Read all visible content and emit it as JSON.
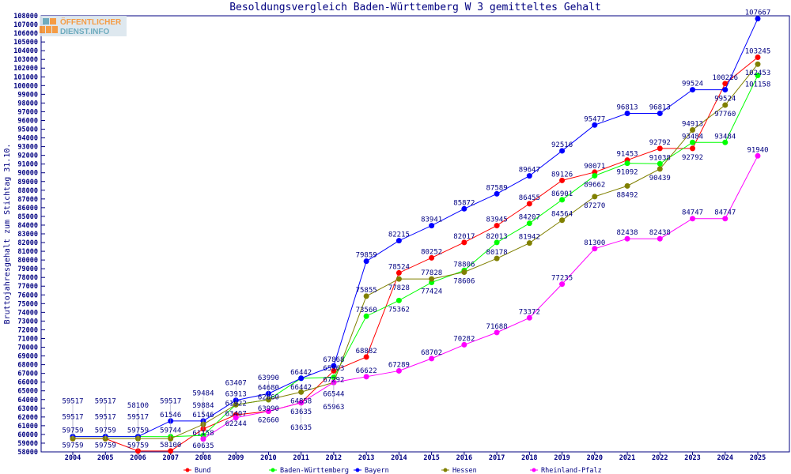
{
  "logo": {
    "line1": "ÖFFENTLICHER",
    "line2": "DIENST.INFO"
  },
  "chart_data": {
    "type": "line",
    "title": "Besoldungsvergleich Baden-Württemberg W 3 gemitteltes Gehalt",
    "xlabel": "",
    "ylabel": "Bruttojahresgehalt zum Stichtag 31.10.",
    "ylim": [
      58000,
      108000
    ],
    "ytick_step": 1000,
    "grid": false,
    "legend_position": "bottom",
    "categories": [
      "2004",
      "2005",
      "2006",
      "2007",
      "2008",
      "2009",
      "2010",
      "2011",
      "2012",
      "2013",
      "2014",
      "2015",
      "2016",
      "2017",
      "2018",
      "2019",
      "2020",
      "2021",
      "2022",
      "2023",
      "2024",
      "2025"
    ],
    "series": [
      {
        "name": "Bund",
        "color": "#ff0000",
        "values": [
          59517,
          59517,
          58100,
          58100,
          60635,
          62244,
          62660,
          63635,
          67292,
          68882,
          78524,
          80252,
          82017,
          83945,
          86455,
          89126,
          90071,
          91453,
          92792,
          92792,
          100226,
          103245
        ]
      },
      {
        "name": "Baden-Württemberg",
        "color": "#00ff00",
        "values": [
          59759,
          59759,
          59759,
          59744,
          59884,
          63407,
          63990,
          66442,
          66544,
          73560,
          75362,
          77424,
          78806,
          82013,
          84207,
          86901,
          89662,
          91092,
          91038,
          93484,
          93484,
          101158
        ]
      },
      {
        "name": "Bayern",
        "color": "#0000ff",
        "values": [
          59759,
          59759,
          59759,
          61546,
          61546,
          63913,
          64680,
          66442,
          67868,
          79859,
          82215,
          83941,
          85872,
          87589,
          89647,
          92516,
          95477,
          96813,
          96813,
          99524,
          99524,
          107667
        ]
      },
      {
        "name": "Hessen",
        "color": "#808000",
        "values": [
          59517,
          59517,
          59517,
          59517,
          61158,
          63407,
          63990,
          64858,
          65963,
          75855,
          77828,
          77828,
          78606,
          80178,
          81942,
          84564,
          87270,
          88492,
          90439,
          94913,
          97760,
          102453
        ]
      },
      {
        "name": "Rheinland-Pfalz",
        "color": "#ff00ff",
        "values": [
          null,
          null,
          null,
          null,
          59484,
          61922,
          62660,
          63635,
          65963,
          66622,
          67289,
          68702,
          70282,
          71688,
          73372,
          77235,
          81300,
          82438,
          82438,
          84747,
          84747,
          91940
        ]
      }
    ]
  }
}
